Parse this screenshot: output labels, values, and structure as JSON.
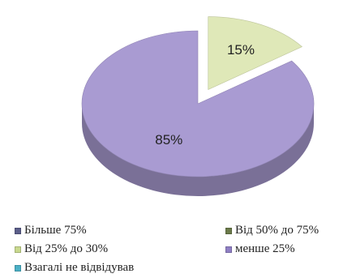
{
  "chart_data": {
    "type": "pie",
    "title": "",
    "slices": [
      {
        "label": "Більше 75%",
        "value": 0,
        "color": "#5b5e8a"
      },
      {
        "label": "Від 50% до 75%",
        "value": 0,
        "color": "#6b7a4a"
      },
      {
        "label": "Від 25% до 30%",
        "value": 15,
        "display": "15%",
        "color": "#dfe8b8"
      },
      {
        "label": "менше 25%",
        "value": 85,
        "display": "85%",
        "color": "#a99bd2"
      },
      {
        "label": "Взагалі не відвідував",
        "value": 0,
        "color": "#4bb0c6"
      }
    ],
    "legend_position": "bottom",
    "style": "3d"
  }
}
